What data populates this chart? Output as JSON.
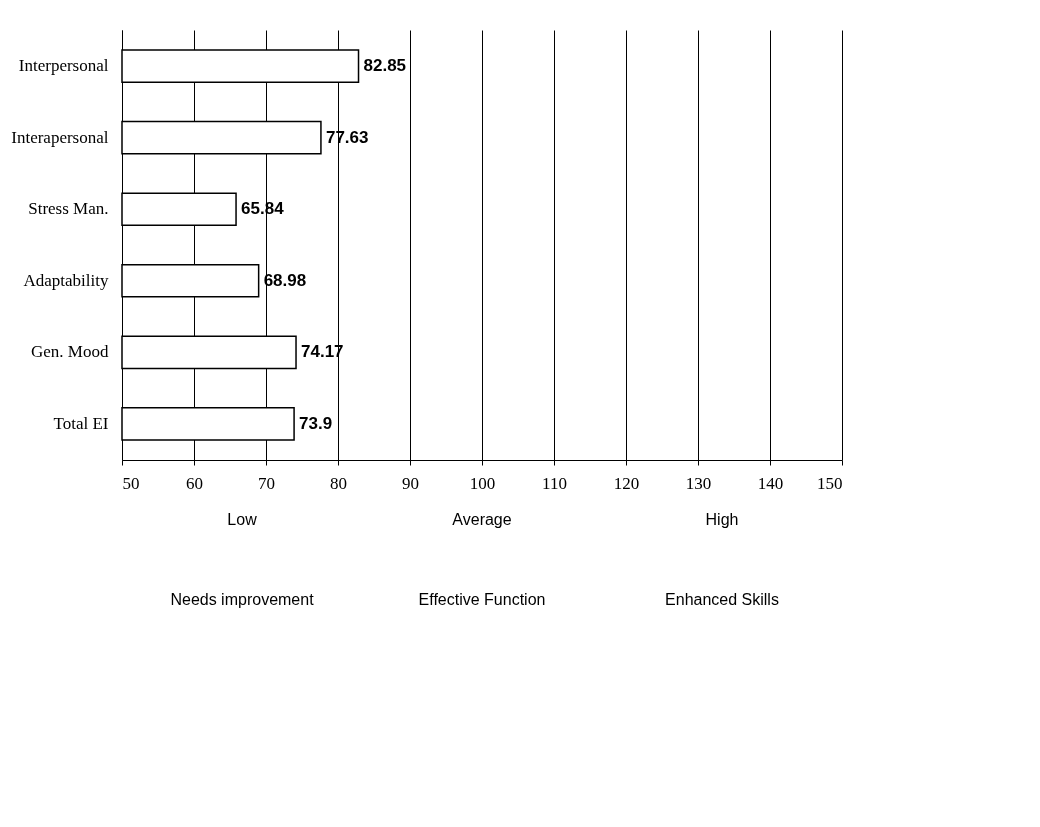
{
  "chart_data": {
    "type": "bar",
    "orientation": "horizontal",
    "categories": [
      "Interpersonal",
      "Interapersonal",
      "Stress Man.",
      "Adaptability",
      "Gen. Mood",
      "Total EI"
    ],
    "values": [
      82.85,
      77.63,
      65.84,
      68.98,
      74.17,
      73.9
    ],
    "color": "#ffffff",
    "xlim": [
      50,
      150
    ],
    "xticks": [
      50,
      60,
      70,
      80,
      90,
      100,
      110,
      120,
      130,
      140,
      150
    ],
    "grid": "x",
    "data_labels": true,
    "annotations": [
      "Low",
      "Average",
      "High",
      "Needs improvement",
      "Effective Function",
      "Enhanced Skills"
    ]
  }
}
